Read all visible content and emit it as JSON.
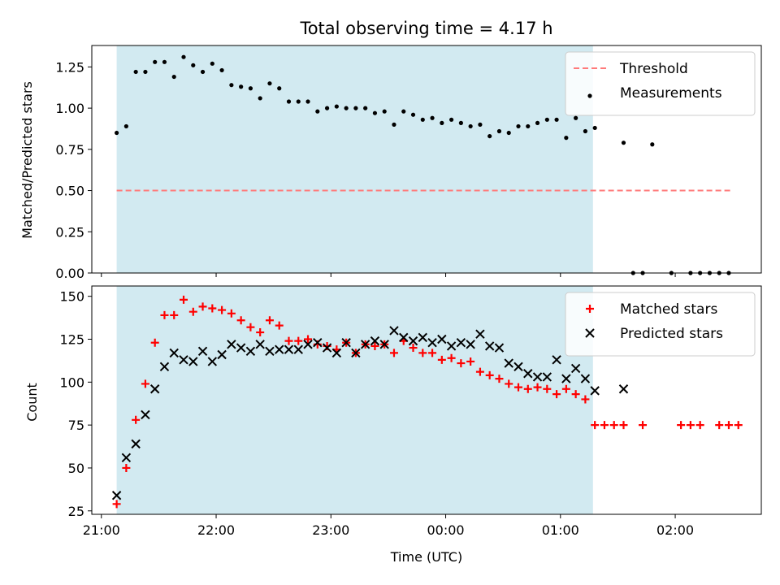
{
  "chart_data": [
    {
      "type": "scatter",
      "title": "Total observing time = 4.17 h",
      "ylabel": "Matched/Predicted stars",
      "xlabel": "",
      "ylim": [
        0,
        1.38
      ],
      "yticks": [
        0.0,
        0.25,
        0.5,
        0.75,
        1.0,
        1.25
      ],
      "ytick_labels": [
        "0.00",
        "0.25",
        "0.50",
        "0.75",
        "1.00",
        "1.25"
      ],
      "shaded_span": [
        "21:08",
        "01:17"
      ],
      "threshold": {
        "name": "Threshold",
        "value": 0.5,
        "x_range": [
          "21:08",
          "02:30"
        ],
        "color": "#ff7a7a"
      },
      "legend_position": "upper right",
      "series": [
        {
          "name": "Measurements",
          "marker": "dot",
          "color": "#000000",
          "x": [
            "21:08",
            "21:13",
            "21:18",
            "21:23",
            "21:28",
            "21:33",
            "21:38",
            "21:43",
            "21:48",
            "21:53",
            "21:58",
            "22:03",
            "22:08",
            "22:13",
            "22:18",
            "22:23",
            "22:28",
            "22:33",
            "22:38",
            "22:43",
            "22:48",
            "22:53",
            "22:58",
            "23:03",
            "23:08",
            "23:13",
            "23:18",
            "23:23",
            "23:28",
            "23:33",
            "23:38",
            "23:43",
            "23:48",
            "23:53",
            "23:58",
            "00:03",
            "00:08",
            "00:13",
            "00:18",
            "00:23",
            "00:28",
            "00:33",
            "00:38",
            "00:43",
            "00:48",
            "00:53",
            "00:58",
            "01:03",
            "01:08",
            "01:13",
            "01:18",
            "01:33",
            "01:38",
            "01:43",
            "01:48",
            "01:58",
            "02:08",
            "02:13",
            "02:18",
            "02:23",
            "02:28"
          ],
          "y": [
            0.85,
            0.89,
            1.22,
            1.22,
            1.28,
            1.28,
            1.19,
            1.31,
            1.26,
            1.22,
            1.27,
            1.23,
            1.14,
            1.13,
            1.12,
            1.06,
            1.15,
            1.12,
            1.04,
            1.04,
            1.04,
            0.98,
            1.0,
            1.01,
            1.0,
            1.0,
            1.0,
            0.97,
            0.98,
            0.9,
            0.98,
            0.96,
            0.93,
            0.94,
            0.91,
            0.93,
            0.91,
            0.89,
            0.9,
            0.83,
            0.86,
            0.85,
            0.89,
            0.89,
            0.91,
            0.93,
            0.93,
            0.82,
            0.94,
            0.86,
            0.88,
            0.79,
            0.0,
            0.0,
            0.78,
            0.0,
            0.0,
            0.0,
            0.0,
            0.0,
            0.0
          ]
        }
      ]
    },
    {
      "type": "scatter",
      "title": "",
      "ylabel": "Count",
      "xlabel": "Time (UTC)",
      "ylim": [
        23,
        156
      ],
      "yticks": [
        25,
        50,
        75,
        100,
        125,
        150
      ],
      "ytick_labels": [
        "25",
        "50",
        "75",
        "100",
        "125",
        "150"
      ],
      "xlim": [
        "20:55",
        "02:45"
      ],
      "xticks": [
        "21:00",
        "22:00",
        "23:00",
        "00:00",
        "01:00",
        "02:00"
      ],
      "shaded_span": [
        "21:08",
        "01:17"
      ],
      "legend_position": "upper right",
      "series": [
        {
          "name": "Matched stars",
          "marker": "plus",
          "color": "#ff0000",
          "x": [
            "21:08",
            "21:13",
            "21:18",
            "21:23",
            "21:28",
            "21:33",
            "21:38",
            "21:43",
            "21:48",
            "21:53",
            "21:58",
            "22:03",
            "22:08",
            "22:13",
            "22:18",
            "22:23",
            "22:28",
            "22:33",
            "22:38",
            "22:43",
            "22:48",
            "22:53",
            "22:58",
            "23:03",
            "23:08",
            "23:13",
            "23:18",
            "23:23",
            "23:28",
            "23:33",
            "23:38",
            "23:43",
            "23:48",
            "23:53",
            "23:58",
            "00:03",
            "00:08",
            "00:13",
            "00:18",
            "00:23",
            "00:28",
            "00:33",
            "00:38",
            "00:43",
            "00:48",
            "00:53",
            "00:58",
            "01:03",
            "01:08",
            "01:13",
            "01:18",
            "01:23",
            "01:28",
            "01:33",
            "01:43",
            "02:03",
            "02:08",
            "02:13",
            "02:23",
            "02:28",
            "02:33"
          ],
          "y": [
            29,
            50,
            78,
            99,
            123,
            139,
            139,
            148,
            141,
            144,
            143,
            142,
            140,
            136,
            132,
            129,
            136,
            133,
            124,
            124,
            125,
            122,
            121,
            119,
            123,
            117,
            122,
            121,
            122,
            117,
            124,
            120,
            117,
            117,
            113,
            114,
            111,
            112,
            106,
            104,
            102,
            99,
            97,
            96,
            97,
            96,
            93,
            96,
            93,
            90,
            75,
            75,
            75,
            75,
            75,
            75,
            75,
            75,
            75,
            75,
            75
          ]
        },
        {
          "name": "Predicted stars",
          "marker": "x",
          "color": "#000000",
          "x": [
            "21:08",
            "21:13",
            "21:18",
            "21:23",
            "21:28",
            "21:33",
            "21:38",
            "21:43",
            "21:48",
            "21:53",
            "21:58",
            "22:03",
            "22:08",
            "22:13",
            "22:18",
            "22:23",
            "22:28",
            "22:33",
            "22:38",
            "22:43",
            "22:48",
            "22:53",
            "22:58",
            "23:03",
            "23:08",
            "23:13",
            "23:18",
            "23:23",
            "23:28",
            "23:33",
            "23:38",
            "23:43",
            "23:48",
            "23:53",
            "23:58",
            "00:03",
            "00:08",
            "00:13",
            "00:18",
            "00:23",
            "00:28",
            "00:33",
            "00:38",
            "00:43",
            "00:48",
            "00:53",
            "00:58",
            "01:03",
            "01:08",
            "01:13",
            "01:18",
            "01:33"
          ],
          "y": [
            34,
            56,
            64,
            81,
            96,
            109,
            117,
            113,
            112,
            118,
            112,
            116,
            122,
            120,
            118,
            122,
            118,
            119,
            119,
            119,
            122,
            123,
            120,
            117,
            123,
            117,
            122,
            124,
            122,
            130,
            126,
            124,
            126,
            123,
            125,
            121,
            123,
            122,
            128,
            121,
            120,
            111,
            109,
            105,
            103,
            103,
            113,
            102,
            108,
            102,
            95,
            96
          ]
        }
      ]
    }
  ]
}
